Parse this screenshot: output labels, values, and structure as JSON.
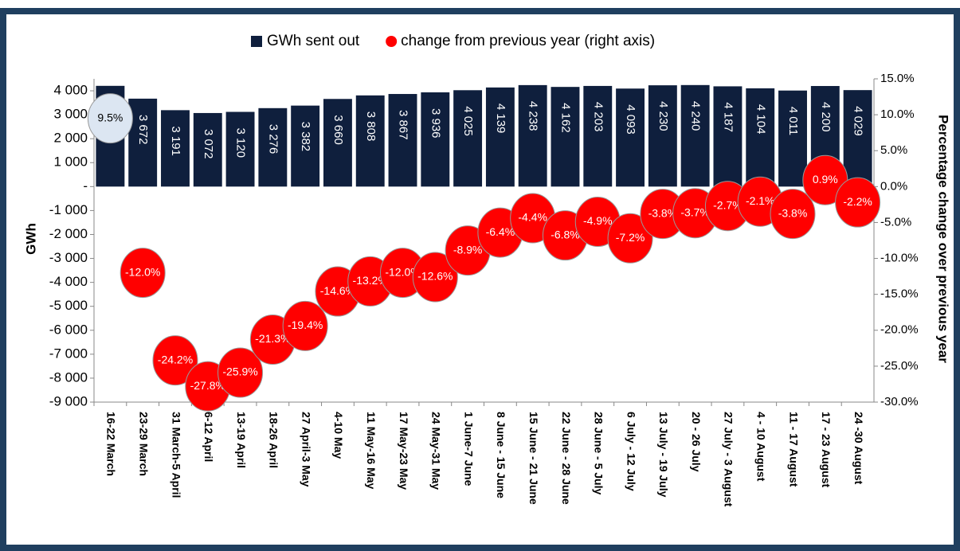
{
  "chart_data": {
    "type": "bar",
    "legend": "top",
    "ylabel": "GWh",
    "y2label": "Percentage change over previous year",
    "categories": [
      "16-22 March",
      "23-29 March",
      "31 March-5 April",
      "6-12 April",
      "13-19 April",
      "18-26 April",
      "27 April-3 May",
      "4-10 May",
      "11 May-16 May",
      "17 May-23 May",
      "24 May-31 May",
      "1 June-7 June",
      "8 June - 15 June",
      "15 June - 21 June",
      "22 June - 28 June",
      "28 June - 5 July",
      "6 July - 12 July",
      "13 July - 19 July",
      "20 - 26 July",
      "27 July - 3 August",
      "4 - 10 August",
      "11 - 17 August",
      "17 - 23 August",
      "24 -30 August"
    ],
    "series": [
      {
        "name": "GWh sent out",
        "color": "#0f1f3d",
        "values": [
          4207,
          3672,
          3191,
          3072,
          3120,
          3276,
          3382,
          3660,
          3808,
          3867,
          3936,
          4025,
          4139,
          4238,
          4162,
          4203,
          4093,
          4230,
          4240,
          4187,
          4104,
          4011,
          4200,
          4029
        ],
        "value_labels": [
          "4 207",
          "3 672",
          "3 191",
          "3 072",
          "3 120",
          "3 276",
          "3 382",
          "3 660",
          "3 808",
          "3 867",
          "3 936",
          "4 025",
          "4 139",
          "4 238",
          "4 162",
          "4 203",
          "4 093",
          "4 230",
          "4 240",
          "4 187",
          "4 104",
          "4 011",
          "4 200",
          "4 029"
        ]
      },
      {
        "name": "change from previous year (right axis)",
        "type": "scatter",
        "axis": "y2",
        "color": "#ff0000",
        "point_colors": [
          "#dce6f2",
          "#ff0000",
          "#ff0000",
          "#ff0000",
          "#ff0000",
          "#ff0000",
          "#ff0000",
          "#ff0000",
          "#ff0000",
          "#ff0000",
          "#ff0000",
          "#ff0000",
          "#ff0000",
          "#ff0000",
          "#ff0000",
          "#ff0000",
          "#ff0000",
          "#ff0000",
          "#ff0000",
          "#ff0000",
          "#ff0000",
          "#ff0000",
          "#ff0000",
          "#ff0000"
        ],
        "values": [
          9.5,
          -12.0,
          -24.2,
          -27.8,
          -25.9,
          -21.3,
          -19.4,
          -14.6,
          -13.2,
          -12.0,
          -12.6,
          -8.9,
          -6.4,
          -4.4,
          -6.8,
          -4.9,
          -7.2,
          -3.8,
          -3.7,
          -2.7,
          -2.1,
          -3.8,
          0.9,
          -2.2
        ],
        "value_labels": [
          "9.5%",
          "-12.0%",
          "-24.2%",
          "-27.8%",
          "-25.9%",
          "-21.3%",
          "-19.4%",
          "-14.6%",
          "-13.2%",
          "-12.0%",
          "-12.6%",
          "-8.9%",
          "-6.4%",
          "-4.4%",
          "-6.8%",
          "-4.9%",
          "-7.2%",
          "-3.8%",
          "-3.7%",
          "-2.7%",
          "-2.1%",
          "-3.8%",
          "0.9%",
          "-2.2%"
        ]
      }
    ],
    "ylim": [
      -9000,
      4500
    ],
    "yticks": [
      {
        "value": -9000,
        "label": "-9 000"
      },
      {
        "value": -8000,
        "label": "-8 000"
      },
      {
        "value": -7000,
        "label": "-7 000"
      },
      {
        "value": -6000,
        "label": "-6 000"
      },
      {
        "value": -5000,
        "label": "-5 000"
      },
      {
        "value": -4000,
        "label": "-4 000"
      },
      {
        "value": -3000,
        "label": "-3 000"
      },
      {
        "value": -2000,
        "label": "-2 000"
      },
      {
        "value": -1000,
        "label": "-1 000"
      },
      {
        "value": 0,
        "label": "-"
      },
      {
        "value": 1000,
        "label": "1 000"
      },
      {
        "value": 2000,
        "label": "2 000"
      },
      {
        "value": 3000,
        "label": "3 000"
      },
      {
        "value": 4000,
        "label": "4 000"
      }
    ],
    "y2lim": [
      -30,
      15
    ],
    "y2ticks": [
      {
        "value": -30,
        "label": "-30.0%"
      },
      {
        "value": -25,
        "label": "-25.0%"
      },
      {
        "value": -20,
        "label": "-20.0%"
      },
      {
        "value": -15,
        "label": "-15.0%"
      },
      {
        "value": -10,
        "label": "-10.0%"
      },
      {
        "value": -5,
        "label": "-5.0%"
      },
      {
        "value": 0,
        "label": "0.0%"
      },
      {
        "value": 5,
        "label": "5.0%"
      },
      {
        "value": 10,
        "label": "10.0%"
      },
      {
        "value": 15,
        "label": "15.0%"
      }
    ]
  }
}
